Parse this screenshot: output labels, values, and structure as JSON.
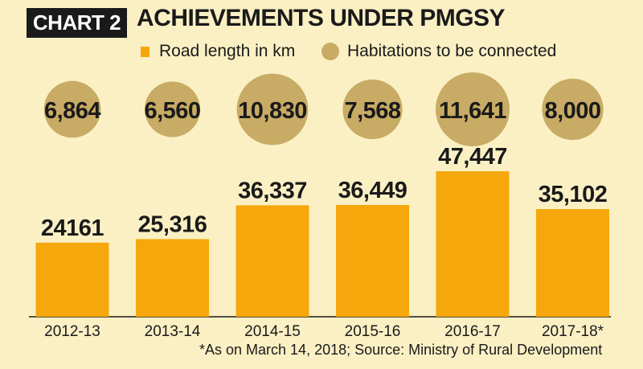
{
  "header": {
    "tag": "CHART 2",
    "title": "ACHIEVEMENTS UNDER PMGSY"
  },
  "legend": [
    {
      "label": "Road length in km",
      "marker": "bar",
      "color": "#f6a70c"
    },
    {
      "label": "Habitations to be connected",
      "marker": "circle",
      "color": "#c8ab64"
    }
  ],
  "footnote": "*As on March 14, 2018; Source: Ministry of Rural Development",
  "chart_data": {
    "type": "bar",
    "title": "ACHIEVEMENTS UNDER PMGSY",
    "categories": [
      "2012-13",
      "2013-14",
      "2014-15",
      "2015-16",
      "2016-17",
      "2017-18*"
    ],
    "series": [
      {
        "name": "Road length in km",
        "values": [
          24161,
          25316,
          36337,
          36449,
          47447,
          35102
        ],
        "value_labels": [
          "24161",
          "25,316",
          "36,337",
          "36,449",
          "47,447",
          "35,102"
        ]
      },
      {
        "name": "Habitations to be connected",
        "marker": "circle",
        "values": [
          6864,
          6560,
          10830,
          7568,
          11641,
          8000
        ],
        "value_labels": [
          "6,864",
          "6,560",
          "10,830",
          "7,568",
          "11,641",
          "8,000"
        ]
      }
    ],
    "grid": false,
    "legend_position": "top",
    "colors": {
      "bar": "#f6a70c",
      "bubble": "#c8ab64",
      "text": "#1a1a1a",
      "background": "#fbf0c4"
    }
  }
}
